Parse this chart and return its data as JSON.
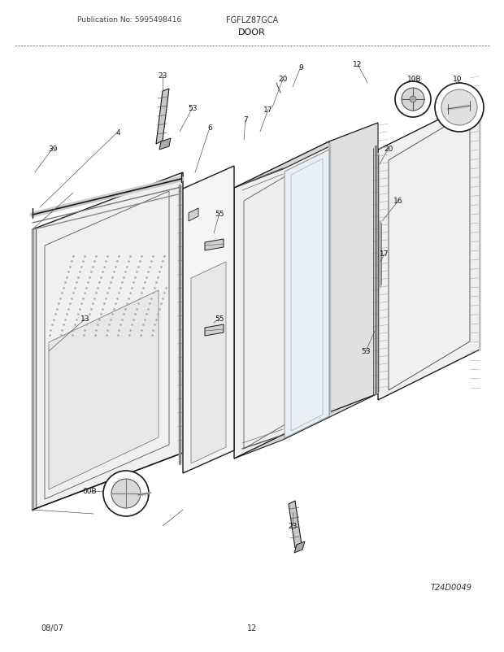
{
  "title": "DOOR",
  "pub_no": "Publication No: 5995498416",
  "model": "FGFLZ87GCA",
  "date": "08/07",
  "page": "12",
  "diagram_id": "T24D0049",
  "fig_width": 6.2,
  "fig_height": 8.03,
  "bg_color": "#ffffff",
  "lc": "#1a1a1a"
}
